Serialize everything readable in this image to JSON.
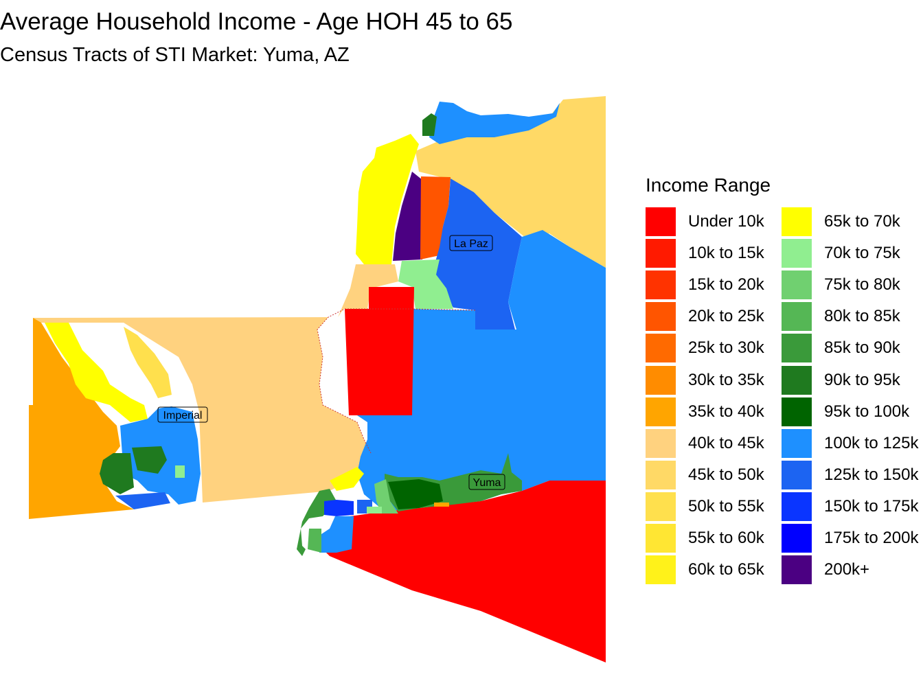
{
  "title": "Average Household Income - Age HOH 45 to 65",
  "subtitle": "Census Tracts of STI Market: Yuma, AZ",
  "legend": {
    "title": "Income Range",
    "items": [
      {
        "label": "Under 10k",
        "color": "#FF0000"
      },
      {
        "label": "10k to 15k",
        "color": "#FF1A00"
      },
      {
        "label": "15k to 20k",
        "color": "#FF3300"
      },
      {
        "label": "20k to 25k",
        "color": "#FF5500"
      },
      {
        "label": "25k to 30k",
        "color": "#FF6A00"
      },
      {
        "label": "30k to 35k",
        "color": "#FF8C00"
      },
      {
        "label": "35k to 40k",
        "color": "#FFA500"
      },
      {
        "label": "40k to 45k",
        "color": "#FFD27F"
      },
      {
        "label": "45k to 50k",
        "color": "#FFD966"
      },
      {
        "label": "50k to 55k",
        "color": "#FFE04D"
      },
      {
        "label": "55k to 60k",
        "color": "#FFE633"
      },
      {
        "label": "60k to 65k",
        "color": "#FFF21A"
      },
      {
        "label": "65k to 70k",
        "color": "#FFFF00"
      },
      {
        "label": "70k to 75k",
        "color": "#90EE90"
      },
      {
        "label": "75k to 80k",
        "color": "#70D070"
      },
      {
        "label": "80k to 85k",
        "color": "#55B755"
      },
      {
        "label": "85k to 90k",
        "color": "#3A9A3A"
      },
      {
        "label": "90k to 95k",
        "color": "#1F7A1F"
      },
      {
        "label": "95k to 100k",
        "color": "#006400"
      },
      {
        "label": "100k to 125k",
        "color": "#1E90FF"
      },
      {
        "label": "125k to 150k",
        "color": "#1C64F2"
      },
      {
        "label": "150k to 175k",
        "color": "#0A35FF"
      },
      {
        "label": "175k to 200k",
        "color": "#0000FF"
      },
      {
        "label": "200k+",
        "color": "#4B0082"
      }
    ]
  },
  "map_labels": {
    "la_paz": "La Paz",
    "imperial": "Imperial",
    "yuma": "Yuma"
  }
}
